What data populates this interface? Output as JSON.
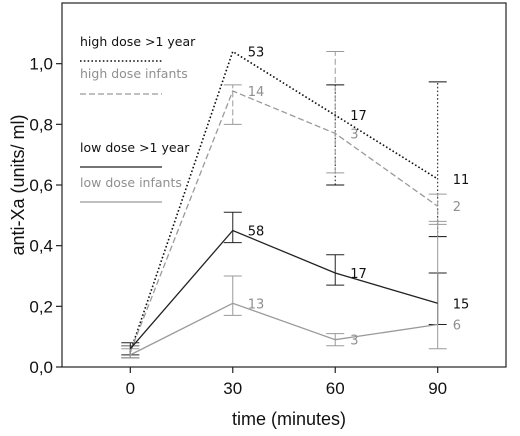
{
  "chart_data": {
    "type": "line",
    "xlabel": "time (minutes)",
    "ylabel": "anti-Xa (units/ ml)",
    "x": [
      0,
      30,
      60,
      90
    ],
    "x_ticks": [
      "0",
      "30",
      "60",
      "90"
    ],
    "y_ticks": [
      "0,0",
      "0,2",
      "0,4",
      "0,6",
      "0,8",
      "1,0"
    ],
    "xlim": [
      -20,
      110
    ],
    "ylim": [
      0,
      1.2
    ],
    "grid": false,
    "legend_position": "top-left",
    "series": [
      {
        "name": "high dose >1 year",
        "color": "#111111",
        "line_style": "dotted",
        "values": [
          0.05,
          1.04,
          0.83,
          0.62
        ],
        "error_low": [
          0.03,
          null,
          0.6,
          0.43
        ],
        "error_high": [
          0.07,
          null,
          0.93,
          0.94
        ],
        "n": [
          null,
          "53",
          "17",
          "11"
        ]
      },
      {
        "name": "high dose infants",
        "color": "#9a9a9a",
        "line_style": "dashed",
        "values": [
          0.05,
          0.91,
          0.77,
          0.53
        ],
        "error_low": [
          0.03,
          0.8,
          0.64,
          0.47
        ],
        "error_high": [
          0.07,
          0.93,
          1.04,
          0.57
        ],
        "n": [
          null,
          "14",
          "3",
          "2"
        ]
      },
      {
        "name": "low dose >1 year",
        "color": "#222222",
        "line_style": "solid",
        "values": [
          0.06,
          0.45,
          0.31,
          0.21
        ],
        "error_low": [
          0.04,
          0.41,
          0.27,
          0.14
        ],
        "error_high": [
          0.08,
          0.51,
          0.37,
          0.31
        ],
        "n": [
          null,
          "58",
          "17",
          "15"
        ]
      },
      {
        "name": "low dose infants",
        "color": "#9a9a9a",
        "line_style": "solid",
        "values": [
          0.04,
          0.21,
          0.09,
          0.14
        ],
        "error_low": [
          0.03,
          0.17,
          0.07,
          0.06
        ],
        "error_high": [
          0.06,
          0.3,
          0.11,
          0.48
        ],
        "n": [
          null,
          "13",
          "3",
          "6"
        ]
      }
    ]
  }
}
